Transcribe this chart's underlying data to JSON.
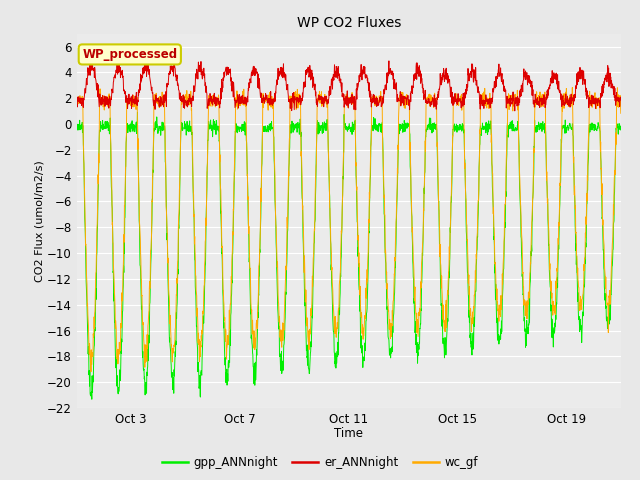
{
  "title": "WP CO2 Fluxes",
  "xlabel": "Time",
  "ylabel": "CO2 Flux (umol/m2/s)",
  "ylim": [
    -22,
    7
  ],
  "yticks": [
    -22,
    -20,
    -18,
    -16,
    -14,
    -12,
    -10,
    -8,
    -6,
    -4,
    -2,
    0,
    2,
    4,
    6
  ],
  "x_tick_labels": [
    "Oct 3",
    "Oct 7",
    "Oct 11",
    "Oct 15",
    "Oct 19"
  ],
  "x_tick_positions": [
    2,
    6,
    10,
    14,
    18
  ],
  "xlim": [
    0,
    20
  ],
  "fig_bg_color": "#e8e8e8",
  "plot_bg_color": "#ebebeb",
  "grid_color": "#ffffff",
  "gpp_color": "#00ee00",
  "er_color": "#dd0000",
  "wc_color": "#ffaa00",
  "legend_label_gpp": "gpp_ANNnight",
  "legend_label_er": "er_ANNnight",
  "legend_label_wc": "wc_gf",
  "annotation_text": "WP_processed",
  "annotation_text_color": "#bb0000",
  "annotation_bg": "#ffffcc",
  "annotation_border": "#cccc00",
  "n_days": 20,
  "points_per_day": 96
}
